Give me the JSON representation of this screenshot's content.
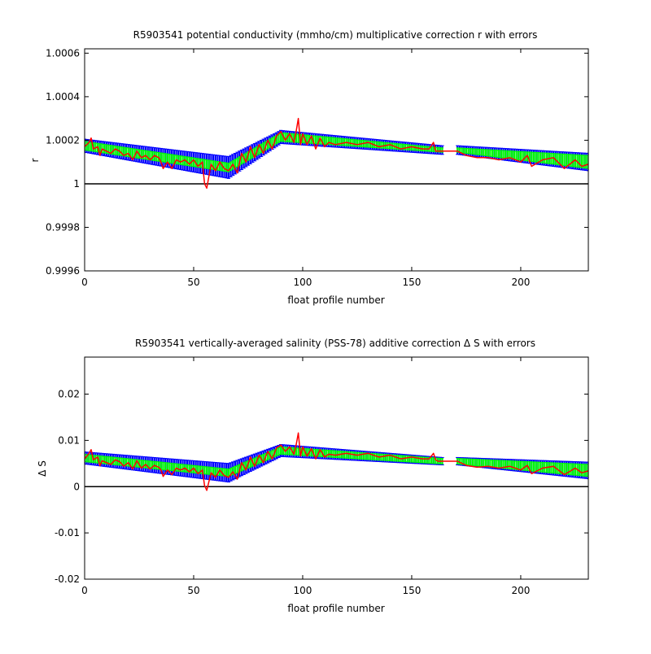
{
  "chart_data": [
    {
      "type": "line",
      "title": "R5903541 potential conductivity (mmho/cm) multiplicative correction r with errors",
      "xlabel": "float profile number",
      "ylabel": "r",
      "xlim": [
        0,
        231
      ],
      "ylim": [
        0.9996,
        1.00062
      ],
      "xticks": [
        0,
        50,
        100,
        150,
        200
      ],
      "yticks": [
        0.9996,
        0.9998,
        1,
        1.0002,
        1.0004,
        1.0006
      ],
      "ytick_labels": [
        "0.9996",
        "0.9998",
        "1",
        "1.0002",
        "1.0004",
        "1.0006"
      ],
      "reference_line": 1,
      "colors": {
        "outer_error": "#0000ff",
        "inner_error": "#00ff00",
        "correction": "#ff0000",
        "reference": "#000000"
      },
      "segments": [
        {
          "x": [
            0,
            66
          ],
          "center": [
            1.000175,
            1.000075
          ],
          "inner": [
            2e-05,
            2e-05
          ],
          "outer": [
            3e-05,
            5e-05
          ]
        },
        {
          "x": [
            66,
            90
          ],
          "center": [
            1.000075,
            1.000215
          ],
          "inner": [
            2e-05,
            2e-05
          ],
          "outer": [
            5e-05,
            3e-05
          ]
        },
        {
          "x": [
            90,
            164
          ],
          "center": [
            1.000215,
            1.000155
          ],
          "inner": [
            2e-05,
            1e-05
          ],
          "outer": [
            3e-05,
            2e-05
          ]
        },
        {
          "x": [
            171,
            231
          ],
          "center": [
            1.000155,
            1.0001
          ],
          "inner": [
            1e-05,
            3e-05
          ],
          "outer": [
            2e-05,
            4e-05
          ]
        }
      ],
      "correction": {
        "x": [
          0,
          2,
          3,
          4,
          6,
          7,
          8,
          10,
          12,
          14,
          16,
          18,
          20,
          22,
          24,
          26,
          28,
          30,
          32,
          34,
          35,
          36,
          38,
          40,
          42,
          44,
          46,
          48,
          50,
          52,
          54,
          55,
          56,
          58,
          60,
          62,
          64,
          66,
          68,
          70,
          72,
          74,
          76,
          78,
          80,
          82,
          84,
          86,
          88,
          90,
          92,
          94,
          96,
          97,
          98,
          99,
          100,
          102,
          104,
          106,
          108,
          110,
          112,
          115,
          120,
          125,
          130,
          135,
          140,
          145,
          150,
          155,
          158,
          160,
          161,
          162,
          165,
          171,
          175,
          180,
          185,
          190,
          195,
          200,
          203,
          205,
          210,
          215,
          220,
          225,
          228,
          231
        ],
        "y": [
          1.00017,
          1.00019,
          1.00021,
          1.00016,
          1.00017,
          1.00013,
          1.00016,
          1.00015,
          1.00014,
          1.00016,
          1.00015,
          1.00013,
          1.00014,
          1.00011,
          1.00015,
          1.00012,
          1.00013,
          1.00011,
          1.00013,
          1.00012,
          1.0001,
          1.00007,
          1.0001,
          1.00007,
          1.00011,
          1.0001,
          1.00011,
          1.00009,
          1.00011,
          1.00008,
          1.0001,
          1.0,
          0.99998,
          1.00009,
          1.00006,
          1.0001,
          1.00007,
          1.00006,
          1.00009,
          1.00005,
          1.00014,
          1.0001,
          1.00017,
          1.00012,
          1.00018,
          1.00014,
          1.0002,
          1.00016,
          1.00022,
          1.00024,
          1.0002,
          1.00023,
          1.00019,
          1.00024,
          1.0003,
          1.00018,
          1.00023,
          1.00018,
          1.00022,
          1.00016,
          1.00021,
          1.00017,
          1.00019,
          1.00018,
          1.00019,
          1.00018,
          1.00019,
          1.00017,
          1.00018,
          1.00016,
          1.00017,
          1.00016,
          1.00016,
          1.00019,
          1.00015,
          1.00015,
          1.00015,
          1.00015,
          1.00013,
          1.00012,
          1.00012,
          1.00011,
          1.00012,
          1.0001,
          1.00013,
          1.00008,
          1.00011,
          1.00012,
          1.00007,
          1.00011,
          1.00008,
          1.00009
        ]
      }
    },
    {
      "type": "line",
      "title": "R5903541 vertically-averaged salinity (PSS-78) additive correction Δ S with errors",
      "xlabel": "float profile number",
      "ylabel": "Δ S",
      "xlim": [
        0,
        231
      ],
      "ylim": [
        -0.02,
        0.028
      ],
      "xticks": [
        0,
        50,
        100,
        150,
        200
      ],
      "yticks": [
        -0.02,
        -0.01,
        0,
        0.01,
        0.02
      ],
      "ytick_labels": [
        "-0.02",
        "-0.01",
        "0",
        "0.01",
        "0.02"
      ],
      "reference_line": 0,
      "colors": {
        "outer_error": "#0000ff",
        "inner_error": "#00ff00",
        "correction": "#ff0000",
        "reference": "#000000"
      },
      "segments": [
        {
          "x": [
            0,
            66
          ],
          "center": [
            0.0062,
            0.003
          ],
          "inner": [
            0.0008,
            0.0008
          ],
          "outer": [
            0.0013,
            0.002
          ]
        },
        {
          "x": [
            66,
            90
          ],
          "center": [
            0.003,
            0.0078
          ],
          "inner": [
            0.0008,
            0.0008
          ],
          "outer": [
            0.002,
            0.0013
          ]
        },
        {
          "x": [
            90,
            164
          ],
          "center": [
            0.0078,
            0.0055
          ],
          "inner": [
            0.0008,
            0.0006
          ],
          "outer": [
            0.0013,
            0.0008
          ]
        },
        {
          "x": [
            171,
            231
          ],
          "center": [
            0.0055,
            0.0035
          ],
          "inner": [
            0.0006,
            0.0013
          ],
          "outer": [
            0.0008,
            0.0018
          ]
        }
      ],
      "correction": {
        "x": [
          0,
          2,
          3,
          4,
          6,
          7,
          8,
          10,
          12,
          14,
          16,
          18,
          20,
          22,
          24,
          26,
          28,
          30,
          32,
          34,
          35,
          36,
          38,
          40,
          42,
          44,
          46,
          48,
          50,
          52,
          54,
          55,
          56,
          58,
          60,
          62,
          64,
          66,
          68,
          70,
          72,
          74,
          76,
          78,
          80,
          82,
          84,
          86,
          88,
          90,
          92,
          94,
          96,
          97,
          98,
          99,
          100,
          102,
          104,
          106,
          108,
          110,
          112,
          115,
          120,
          125,
          130,
          135,
          140,
          145,
          150,
          155,
          158,
          160,
          161,
          162,
          165,
          171,
          175,
          180,
          185,
          190,
          195,
          200,
          203,
          205,
          210,
          215,
          220,
          225,
          228,
          231
        ],
        "y": [
          0.006,
          0.0072,
          0.008,
          0.0058,
          0.0064,
          0.0045,
          0.0056,
          0.0052,
          0.0048,
          0.0058,
          0.0054,
          0.0044,
          0.0052,
          0.0038,
          0.0056,
          0.004,
          0.0048,
          0.0038,
          0.0046,
          0.0042,
          0.0036,
          0.0022,
          0.0036,
          0.0026,
          0.004,
          0.0036,
          0.004,
          0.0032,
          0.004,
          0.0028,
          0.0036,
          0.0002,
          -0.0008,
          0.003,
          0.002,
          0.0036,
          0.0024,
          0.002,
          0.0032,
          0.0016,
          0.0052,
          0.0036,
          0.0064,
          0.0044,
          0.0068,
          0.0052,
          0.0076,
          0.006,
          0.0084,
          0.009,
          0.0076,
          0.0086,
          0.007,
          0.009,
          0.0116,
          0.0066,
          0.0086,
          0.0066,
          0.0082,
          0.006,
          0.008,
          0.0064,
          0.007,
          0.0068,
          0.0072,
          0.0068,
          0.0072,
          0.0064,
          0.0068,
          0.006,
          0.0064,
          0.006,
          0.006,
          0.0072,
          0.0058,
          0.0055,
          0.0055,
          0.0055,
          0.0046,
          0.0042,
          0.0044,
          0.004,
          0.0044,
          0.0036,
          0.0046,
          0.0028,
          0.004,
          0.0044,
          0.0026,
          0.004,
          0.003,
          0.0034
        ]
      }
    }
  ]
}
